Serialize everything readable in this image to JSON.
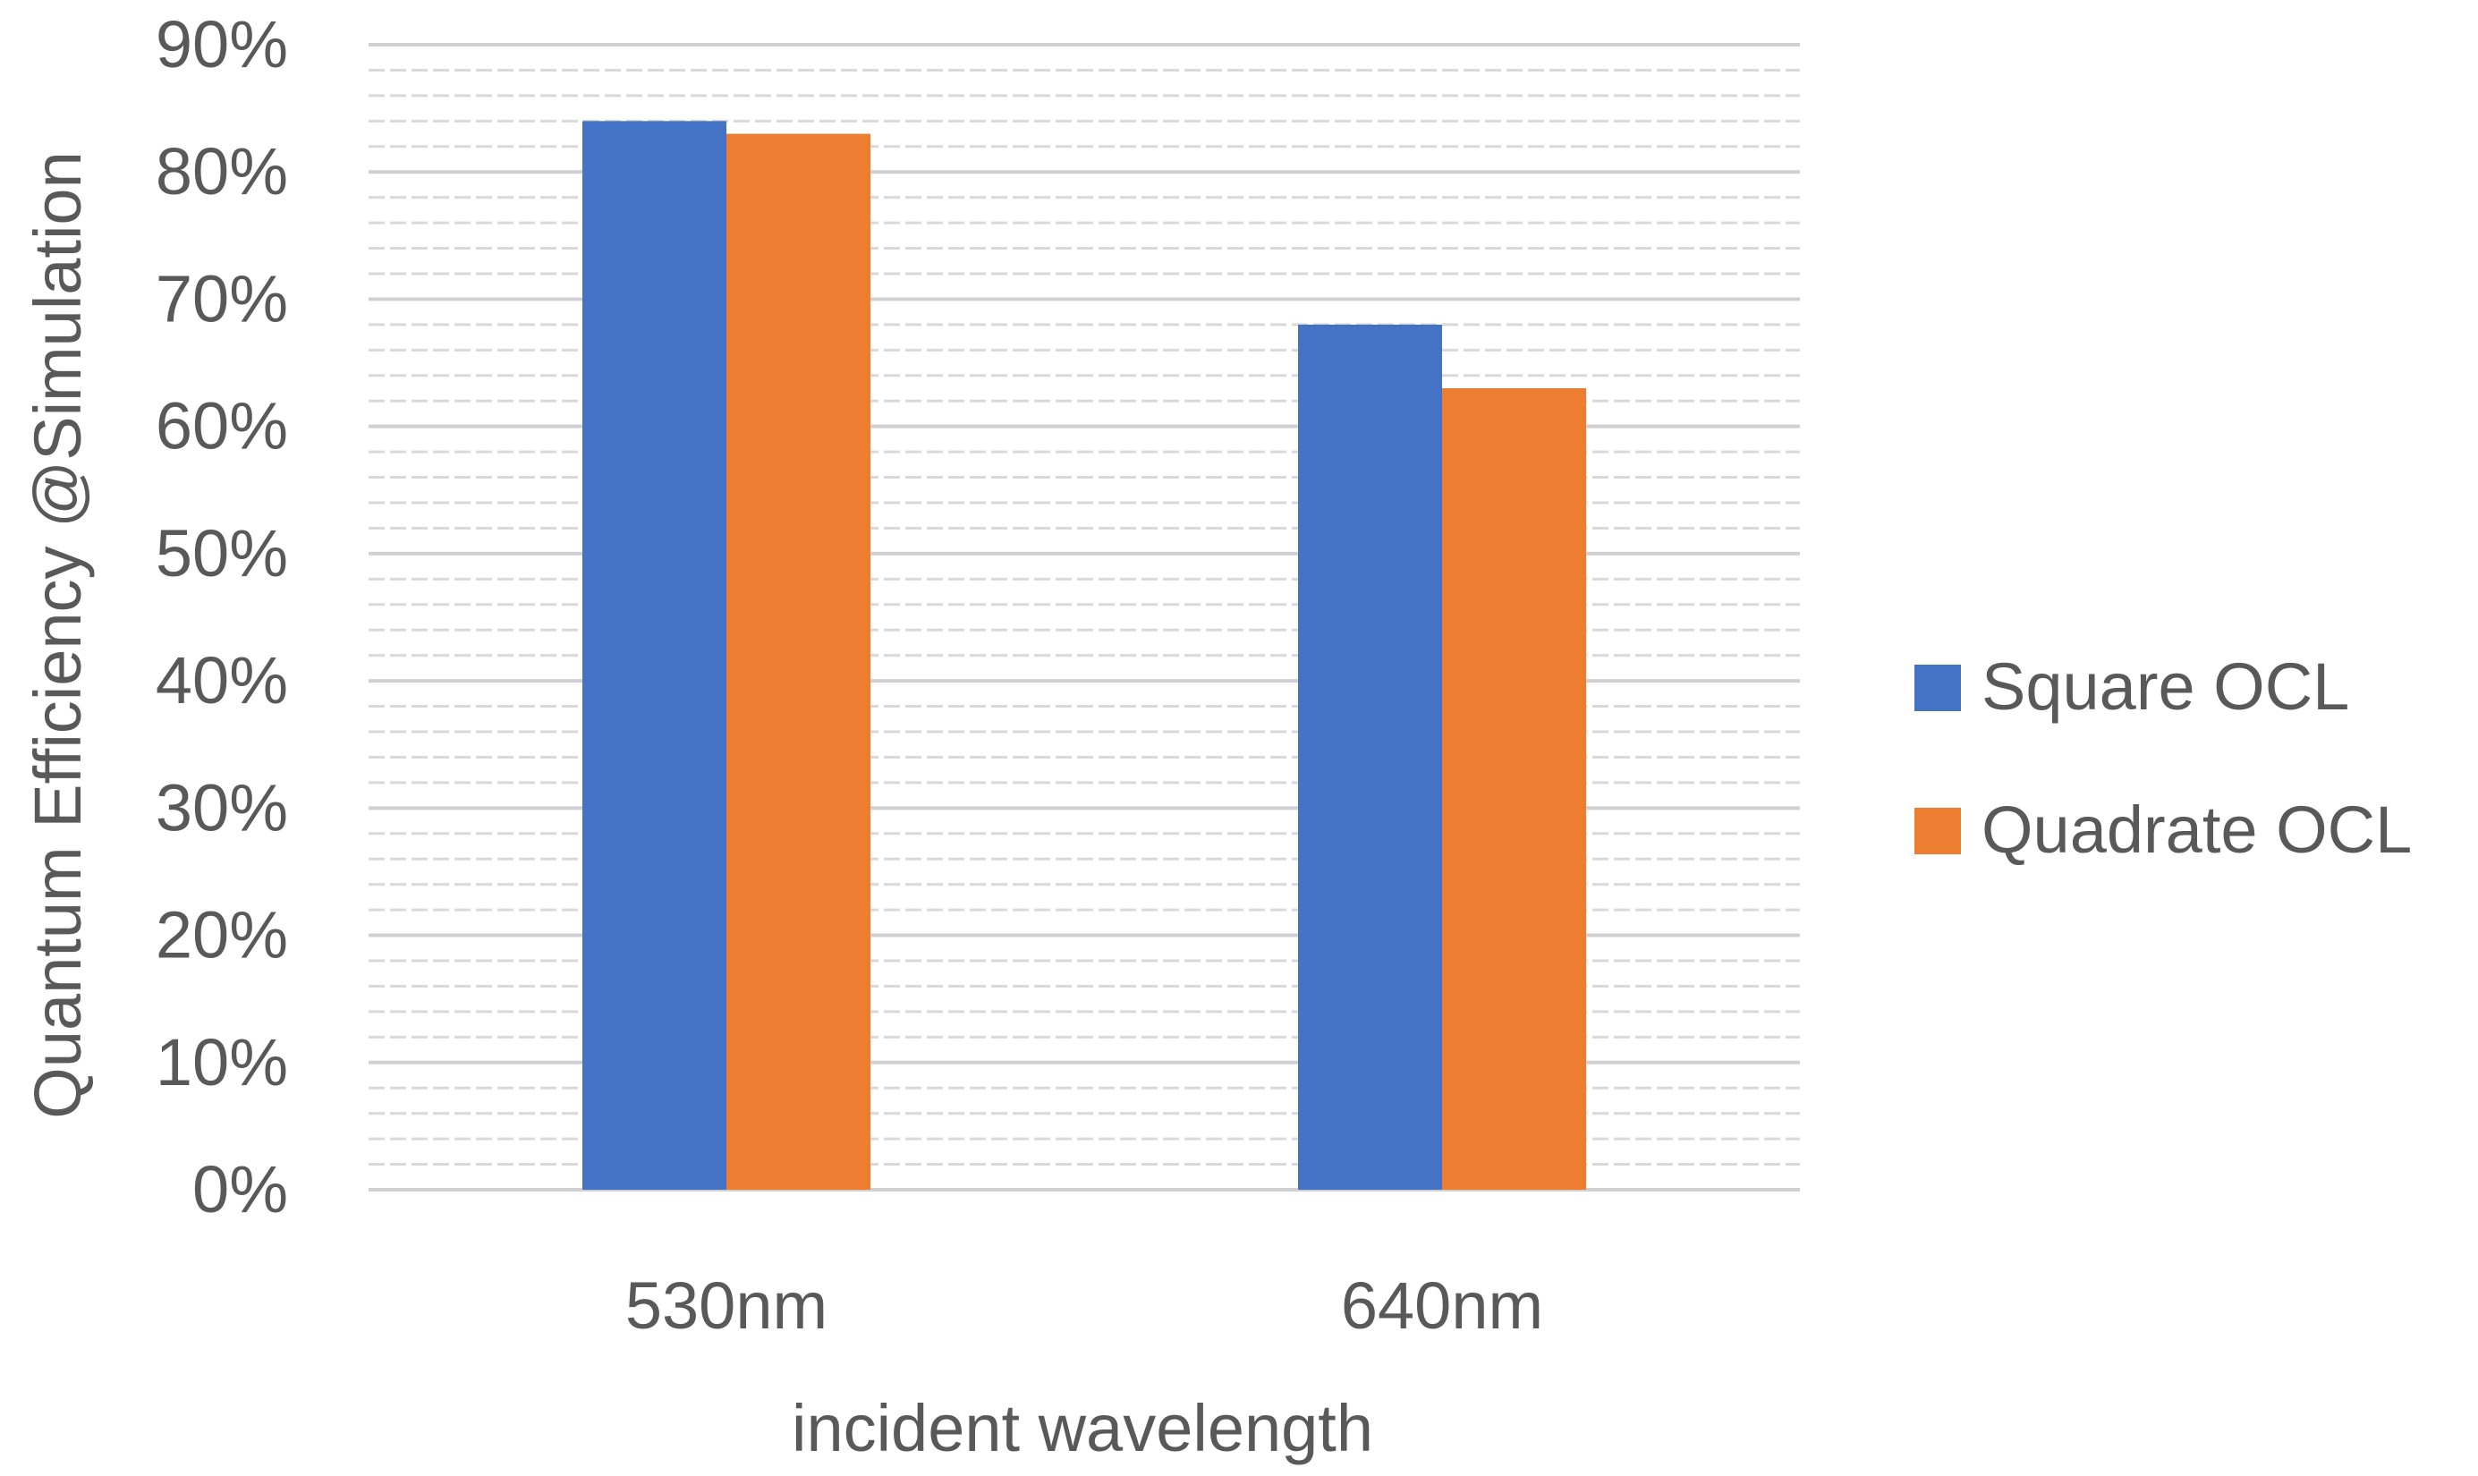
{
  "chart_data": {
    "type": "bar",
    "categories": [
      "530nm",
      "640nm"
    ],
    "series": [
      {
        "name": "Square OCL",
        "values": [
          84,
          68
        ],
        "color": "#4472C4"
      },
      {
        "name": "Quadrate OCL",
        "values": [
          83,
          63
        ],
        "color": "#ED7D31"
      }
    ],
    "xlabel": "incident wavelength",
    "ylabel": "Quantum Efficiency @Simulation",
    "ylim": [
      0,
      90
    ],
    "y_ticks": [
      "0%",
      "10%",
      "20%",
      "30%",
      "40%",
      "50%",
      "60%",
      "70%",
      "80%",
      "90%"
    ],
    "y_tick_values": [
      0,
      10,
      20,
      30,
      40,
      50,
      60,
      70,
      80,
      90
    ],
    "grid": true,
    "legend_position": "right"
  }
}
